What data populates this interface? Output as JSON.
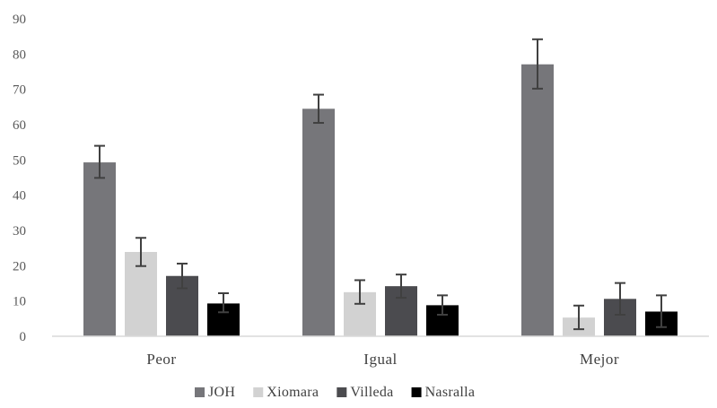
{
  "chart_data": {
    "type": "bar",
    "categories": [
      "Peor",
      "Igual",
      "Mejor"
    ],
    "ylim": [
      0,
      90
    ],
    "yticks": [
      0,
      10,
      20,
      30,
      40,
      50,
      60,
      70,
      80,
      90
    ],
    "grid": false,
    "legend_position": "bottom",
    "series": [
      {
        "name": "JOH",
        "color": "#76767a",
        "values": [
          49.3,
          64.5,
          77.1
        ],
        "err_low": [
          44.9,
          60.5,
          70.2
        ],
        "err_high": [
          54.0,
          68.5,
          84.2
        ]
      },
      {
        "name": "Xiomara",
        "color": "#d2d2d2",
        "values": [
          23.9,
          12.5,
          5.3
        ],
        "err_low": [
          19.9,
          9.2,
          2.0
        ],
        "err_high": [
          27.9,
          15.9,
          8.7
        ]
      },
      {
        "name": "Villeda",
        "color": "#4b4b4f",
        "values": [
          17.1,
          14.2,
          10.6
        ],
        "err_low": [
          13.6,
          10.9,
          6.1
        ],
        "err_high": [
          20.6,
          17.5,
          15.1
        ]
      },
      {
        "name": "Nasralla",
        "color": "#000000",
        "values": [
          9.3,
          8.8,
          7.0
        ],
        "err_low": [
          6.8,
          6.1,
          2.6
        ],
        "err_high": [
          12.2,
          11.6,
          11.6
        ]
      }
    ]
  }
}
